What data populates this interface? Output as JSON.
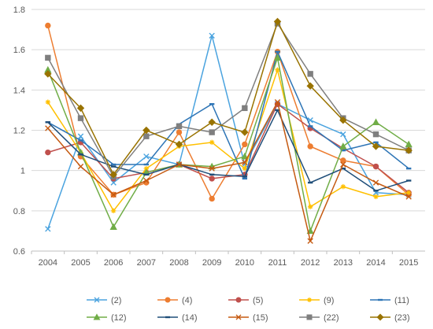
{
  "chart_data": {
    "type": "line",
    "title": "",
    "xlabel": "",
    "ylabel": "",
    "x": [
      "2004",
      "2005",
      "2006",
      "2007",
      "2008",
      "2009",
      "2010",
      "2011",
      "2012",
      "2013",
      "2014",
      "2015"
    ],
    "ylim": [
      0.6,
      1.8
    ],
    "yticks": [
      "0.6",
      "0.8",
      "1",
      "1.2",
      "1.4",
      "1.6",
      "1.8"
    ],
    "grid": true,
    "legend": "bottom",
    "series": [
      {
        "name": "(2)",
        "color": "#4aa3df",
        "marker": "x",
        "values": [
          0.71,
          1.17,
          0.94,
          1.07,
          1.03,
          1.67,
          1.03,
          1.33,
          1.25,
          1.18,
          0.89,
          0.88
        ]
      },
      {
        "name": "(4)",
        "color": "#ed7d31",
        "marker": "circle",
        "values": [
          1.72,
          1.07,
          0.88,
          0.94,
          1.19,
          0.86,
          1.13,
          1.59,
          1.12,
          1.05,
          1.02,
          0.88
        ]
      },
      {
        "name": "(5)",
        "color": "#c0504d",
        "marker": "circle",
        "values": [
          1.09,
          1.14,
          0.96,
          0.99,
          1.03,
          0.96,
          0.98,
          1.33,
          1.21,
          1.11,
          1.02,
          0.89
        ]
      },
      {
        "name": "(9)",
        "color": "#ffc000",
        "marker": "star",
        "values": [
          1.34,
          1.09,
          0.8,
          1.01,
          1.12,
          1.14,
          1.01,
          1.5,
          0.82,
          0.92,
          0.87,
          0.89
        ]
      },
      {
        "name": "(11)",
        "color": "#2e75b6",
        "marker": "dash",
        "values": [
          1.24,
          1.15,
          1.03,
          1.03,
          1.23,
          1.33,
          0.96,
          1.59,
          1.22,
          1.1,
          1.14,
          1.01
        ]
      },
      {
        "name": "(12)",
        "color": "#70ad47",
        "marker": "triangle",
        "values": [
          1.5,
          1.09,
          0.72,
          0.99,
          1.03,
          1.02,
          1.07,
          1.56,
          0.7,
          1.12,
          1.24,
          1.13
        ]
      },
      {
        "name": "(14)",
        "color": "#1f4e79",
        "marker": "dash",
        "values": [
          1.24,
          1.08,
          1.02,
          0.98,
          1.03,
          0.98,
          0.97,
          1.3,
          0.94,
          1.01,
          0.9,
          0.95
        ]
      },
      {
        "name": "(15)",
        "color": "#c55a11",
        "marker": "x",
        "values": [
          1.21,
          1.02,
          0.88,
          0.95,
          1.03,
          1.01,
          1.04,
          1.34,
          0.65,
          1.03,
          0.94,
          0.87
        ]
      },
      {
        "name": "(22)",
        "color": "#7f7f7f",
        "marker": "square",
        "values": [
          1.56,
          1.26,
          0.97,
          1.17,
          1.22,
          1.19,
          1.31,
          1.73,
          1.48,
          1.26,
          1.18,
          1.1
        ]
      },
      {
        "name": "(23)",
        "color": "#997300",
        "marker": "diamond",
        "values": [
          1.48,
          1.31,
          0.98,
          1.2,
          1.13,
          1.24,
          1.19,
          1.74,
          1.42,
          1.25,
          1.12,
          1.1
        ]
      }
    ]
  }
}
